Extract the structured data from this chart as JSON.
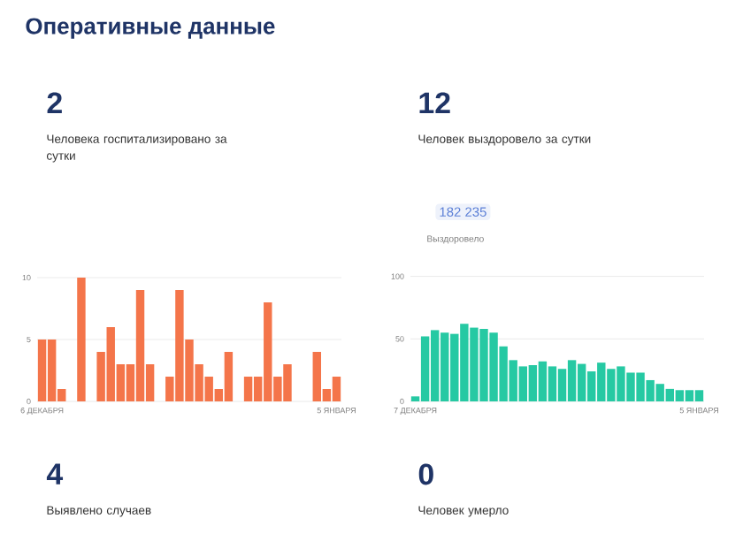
{
  "chart_data": [
    {
      "type": "bar",
      "title": "Оперативные данные",
      "annotations": [
        "2",
        "Человека госпитализировано за сутки"
      ],
      "categories": [
        "6 ДЕКАБРЯ",
        null,
        null,
        null,
        null,
        null,
        null,
        null,
        null,
        null,
        null,
        null,
        null,
        null,
        null,
        null,
        null,
        null,
        null,
        null,
        null,
        null,
        null,
        null,
        null,
        null,
        null,
        null,
        null,
        null,
        "5 ЯНВАРЯ"
      ],
      "values": [
        5,
        5,
        1,
        0,
        10,
        0,
        4,
        6,
        3,
        3,
        9,
        3,
        0,
        2,
        9,
        5,
        3,
        2,
        1,
        4,
        0,
        2,
        2,
        8,
        2,
        3,
        0,
        0,
        4,
        1,
        2
      ],
      "color": "#f4754a",
      "ylim": [
        0,
        10
      ],
      "yticks": [
        0,
        5,
        10
      ],
      "grid": "y"
    },
    {
      "type": "bar",
      "annotations": [
        "12",
        "Человек выздоровело за сутки",
        "182 235",
        "Выздоровело"
      ],
      "categories": [
        "7 ДЕКАБРЯ",
        null,
        null,
        null,
        null,
        null,
        null,
        null,
        null,
        null,
        null,
        null,
        null,
        null,
        null,
        null,
        null,
        null,
        null,
        null,
        null,
        null,
        null,
        null,
        null,
        null,
        null,
        null,
        null,
        "5 ЯНВАРЯ"
      ],
      "values": [
        4,
        52,
        57,
        55,
        54,
        62,
        59,
        58,
        55,
        44,
        33,
        28,
        29,
        32,
        28,
        26,
        33,
        30,
        24,
        31,
        26,
        28,
        23,
        23,
        17,
        14,
        10,
        9,
        9,
        9
      ],
      "color": "#26c9a3",
      "ylim": [
        0,
        100
      ],
      "yticks": [
        0,
        50,
        100
      ],
      "grid": "y"
    },
    {
      "type": "other",
      "annotations": [
        "4",
        "Выявлено случаев",
        "0",
        "Человек умерло"
      ]
    }
  ]
}
